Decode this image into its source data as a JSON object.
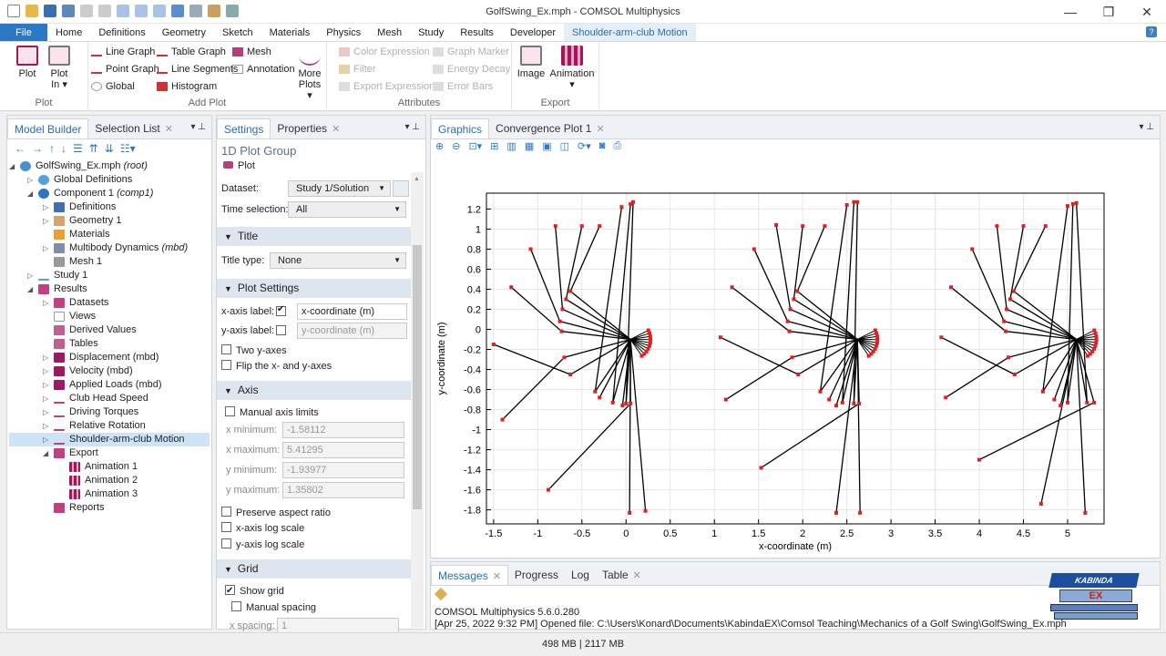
{
  "window": {
    "title": "GolfSwing_Ex.mph - COMSOL Multiphysics",
    "minimize": "—",
    "maximize": "❐",
    "close": "✕"
  },
  "menu": {
    "items": [
      "Home",
      "Definitions",
      "Geometry",
      "Sketch",
      "Materials",
      "Physics",
      "Mesh",
      "Study",
      "Results",
      "Developer"
    ],
    "file": "File",
    "context_tab": "Shoulder-arm-club Motion",
    "help": "?"
  },
  "ribbon": {
    "plot": {
      "plot": "Plot",
      "plot_in": "Plot",
      "plot_in2": "In",
      "group": "Plot"
    },
    "add_plot": {
      "line_graph": "Line Graph",
      "point_graph": "Point Graph",
      "global": "Global",
      "table_graph": "Table Graph",
      "line_segments": "Line Segments",
      "histogram": "Histogram",
      "mesh": "Mesh",
      "annotation": "Annotation",
      "more_plots": "More",
      "more_plots2": "Plots",
      "group": "Add Plot"
    },
    "attributes": {
      "color_expression": "Color Expression",
      "filter": "Filter",
      "export_expressions": "Export Expressions",
      "graph_marker": "Graph Marker",
      "energy_decay": "Energy Decay",
      "error_bars": "Error Bars",
      "group": "Attributes"
    },
    "export": {
      "image": "Image",
      "animation": "Animation",
      "group": "Export"
    }
  },
  "model_builder": {
    "tabs": {
      "model_builder": "Model Builder",
      "selection_list": "Selection List"
    },
    "tree": [
      {
        "label": "GolfSwing_Ex.mph",
        "suffix": "(root)"
      },
      {
        "label": "Global Definitions"
      },
      {
        "label": "Component 1",
        "suffix": "(comp1)"
      },
      {
        "label": "Definitions"
      },
      {
        "label": "Geometry 1"
      },
      {
        "label": "Materials"
      },
      {
        "label": "Multibody Dynamics",
        "suffix": "(mbd)"
      },
      {
        "label": "Mesh 1"
      },
      {
        "label": "Study 1"
      },
      {
        "label": "Results"
      },
      {
        "label": "Datasets"
      },
      {
        "label": "Views"
      },
      {
        "label": "Derived Values"
      },
      {
        "label": "Tables"
      },
      {
        "label": "Displacement (mbd)"
      },
      {
        "label": "Velocity (mbd)"
      },
      {
        "label": "Applied Loads (mbd)"
      },
      {
        "label": "Club Head Speed"
      },
      {
        "label": "Driving Torques"
      },
      {
        "label": "Relative Rotation"
      },
      {
        "label": "Shoulder-arm-club Motion"
      },
      {
        "label": "Export"
      },
      {
        "label": "Animation 1"
      },
      {
        "label": "Animation 2"
      },
      {
        "label": "Animation 3"
      },
      {
        "label": "Reports"
      }
    ]
  },
  "settings": {
    "tabs": {
      "settings": "Settings",
      "properties": "Properties"
    },
    "heading": "1D Plot Group",
    "subheading": "Plot",
    "dataset_label": "Dataset:",
    "dataset_value": "Study 1/Solution",
    "time_label": "Time selection:",
    "time_value": "All",
    "title_section": "Title",
    "title_type_label": "Title type:",
    "title_type_value": "None",
    "plot_settings_section": "Plot Settings",
    "x_axis_label": "x-axis label:",
    "x_axis_value": "x-coordinate (m)",
    "x_axis_checked": true,
    "y_axis_label": "y-axis label:",
    "y_axis_placeholder": "y-coordinate (m)",
    "y_axis_checked": false,
    "two_y_axes": "Two y-axes",
    "flip_axes": "Flip the x- and y-axes",
    "axis_section": "Axis",
    "manual_axis_limits": "Manual axis limits",
    "x_min_label": "x minimum:",
    "x_min": "-1.58112",
    "x_max_label": "x maximum:",
    "x_max": "5.41295",
    "y_min_label": "y minimum:",
    "y_min": "-1.93977",
    "y_max_label": "y maximum:",
    "y_max": "1.35802",
    "preserve_aspect": "Preserve aspect ratio",
    "x_log": "x-axis log scale",
    "y_log": "y-axis log scale",
    "grid_section": "Grid",
    "show_grid": "Show grid",
    "show_grid_checked": true,
    "manual_spacing": "Manual spacing",
    "x_spacing_label": "x spacing:",
    "x_spacing": "1"
  },
  "graphics": {
    "tabs": {
      "graphics": "Graphics",
      "convergence": "Convergence Plot 1"
    }
  },
  "chart_data": {
    "type": "line",
    "xlabel": "x-coordinate (m)",
    "ylabel": "y-coordinate (m)",
    "xlim": [
      -1.58112,
      5.41295
    ],
    "ylim": [
      -1.93977,
      1.35802
    ],
    "xticks": [
      -1.5,
      -1,
      -0.5,
      0,
      0.5,
      1,
      1.5,
      2,
      2.5,
      3,
      3.5,
      4,
      4.5,
      5
    ],
    "xtick_labels": [
      "-1.5",
      "-1",
      "-0.5",
      "0",
      "0.5",
      "1",
      "1.5",
      "2",
      "2.5",
      "3",
      "3.5",
      "4",
      "4.5",
      "5"
    ],
    "yticks": [
      1.2,
      1,
      0.8,
      0.6,
      0.4,
      0.2,
      0,
      -0.2,
      -0.4,
      -0.6,
      -0.8,
      -1,
      -1.2,
      -1.4,
      -1.6,
      -1.8
    ],
    "ytick_labels": [
      "1.2",
      "1",
      "0.8",
      "0.6",
      "0.4",
      "0.2",
      "0",
      "-0.2",
      "-0.4",
      "-0.6",
      "-0.8",
      "-1",
      "-1.2",
      "-1.4",
      "-1.6",
      "-1.8"
    ],
    "grid": true,
    "line_color": "#000000",
    "marker_color": "#e02020",
    "groups": [
      {
        "pivot": [
          0.05,
          -0.1
        ],
        "tips": [
          [
            -1.5,
            -0.15
          ],
          [
            -1.4,
            -0.9
          ],
          [
            -1.3,
            0.42
          ],
          [
            -1.08,
            0.8
          ],
          [
            -0.8,
            1.03
          ],
          [
            -0.5,
            1.03
          ],
          [
            -0.3,
            1.03
          ],
          [
            -0.05,
            1.22
          ],
          [
            0.05,
            1.25
          ],
          [
            0.08,
            1.27
          ],
          [
            -0.88,
            -1.6
          ],
          [
            -0.04,
            -0.76
          ],
          [
            0.04,
            -1.83
          ],
          [
            0.22,
            -1.81
          ],
          [
            -0.3,
            -0.68
          ]
        ],
        "joints": [
          [
            -0.63,
            -0.45
          ],
          [
            -0.7,
            -0.28
          ],
          [
            -0.73,
            -0.02
          ],
          [
            -0.75,
            0.08
          ],
          [
            -0.72,
            0.2
          ],
          [
            -0.68,
            0.3
          ],
          [
            -0.63,
            0.38
          ],
          [
            -0.35,
            -0.62
          ],
          [
            -0.15,
            -0.73
          ],
          [
            0.0,
            -0.74
          ],
          [
            0.05,
            -0.74
          ]
        ]
      },
      {
        "pivot": [
          2.62,
          -0.1
        ],
        "tips": [
          [
            1.07,
            -0.08
          ],
          [
            1.13,
            -0.7
          ],
          [
            1.2,
            0.42
          ],
          [
            1.45,
            0.8
          ],
          [
            1.7,
            1.04
          ],
          [
            2.0,
            1.03
          ],
          [
            2.25,
            1.03
          ],
          [
            2.5,
            1.24
          ],
          [
            2.58,
            1.27
          ],
          [
            2.62,
            1.27
          ],
          [
            1.53,
            -1.38
          ],
          [
            2.38,
            -0.76
          ],
          [
            2.38,
            -1.83
          ],
          [
            2.65,
            -1.83
          ],
          [
            2.3,
            -0.7
          ]
        ],
        "joints": [
          [
            1.95,
            -0.45
          ],
          [
            1.88,
            -0.28
          ],
          [
            1.85,
            -0.02
          ],
          [
            1.83,
            0.08
          ],
          [
            1.86,
            0.2
          ],
          [
            1.9,
            0.3
          ],
          [
            1.94,
            0.38
          ],
          [
            2.2,
            -0.62
          ],
          [
            2.45,
            -0.73
          ],
          [
            2.58,
            -0.74
          ],
          [
            2.64,
            -0.74
          ]
        ]
      },
      {
        "pivot": [
          5.1,
          -0.1
        ],
        "tips": [
          [
            3.57,
            -0.08
          ],
          [
            3.62,
            -0.68
          ],
          [
            3.68,
            0.42
          ],
          [
            3.92,
            0.8
          ],
          [
            4.2,
            1.03
          ],
          [
            4.5,
            1.03
          ],
          [
            4.75,
            1.03
          ],
          [
            5.0,
            1.23
          ],
          [
            5.06,
            1.25
          ],
          [
            5.1,
            1.26
          ],
          [
            4.0,
            -1.3
          ],
          [
            4.92,
            -0.76
          ],
          [
            4.7,
            -1.74
          ],
          [
            5.2,
            -1.83
          ],
          [
            4.85,
            -0.7
          ]
        ],
        "joints": [
          [
            4.4,
            -0.45
          ],
          [
            4.33,
            -0.28
          ],
          [
            4.3,
            -0.02
          ],
          [
            4.28,
            0.08
          ],
          [
            4.31,
            0.2
          ],
          [
            4.35,
            0.3
          ],
          [
            4.39,
            0.38
          ],
          [
            4.72,
            -0.62
          ],
          [
            5.0,
            -0.73
          ],
          [
            5.22,
            -0.73
          ],
          [
            5.3,
            -0.73
          ]
        ]
      }
    ]
  },
  "messages": {
    "tabs": {
      "messages": "Messages",
      "progress": "Progress",
      "log": "Log",
      "table": "Table"
    },
    "line1": "COMSOL Multiphysics 5.6.0.280",
    "line2": "[Apr 25, 2022 9:32 PM] Opened file: C:\\Users\\Konard\\Documents\\KabindaEX\\Comsol Teaching\\Mechanics of a Golf Swing\\GolfSwing_Ex.mph",
    "logo_text": "KABINDA",
    "logo_ex": "EX"
  },
  "status": {
    "memory": "498 MB | 2117 MB"
  },
  "colors": {
    "accent": "#2b78c5",
    "context_tab": "#e4eef8",
    "selection": "#cde3f8",
    "section": "#dde6ef"
  }
}
